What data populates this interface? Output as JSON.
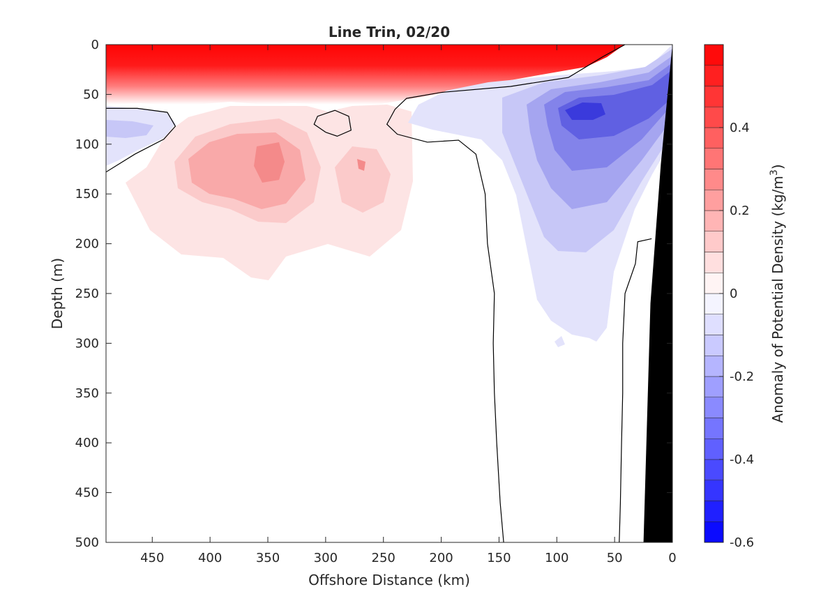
{
  "chart_data": {
    "type": "contourf",
    "title": "Line Trin, 02/20",
    "xlabel": "Offshore Distance (km)",
    "ylabel": "Depth (m)",
    "colorbar_label": "Anomaly of Potential Density (kg/m³)",
    "colorbar_label_text": "Anomaly of Potential Density (kg/m",
    "colorbar_label_sup": "3",
    "colorbar_label_close": ")",
    "xlim": [
      490,
      0
    ],
    "ylim": [
      500,
      0
    ],
    "x_ticks": [
      450,
      400,
      350,
      300,
      250,
      200,
      150,
      100,
      50,
      0
    ],
    "x_tick_labels": [
      "450",
      "400",
      "350",
      "300",
      "250",
      "200",
      "150",
      "100",
      "50",
      "0"
    ],
    "y_ticks": [
      0,
      50,
      100,
      150,
      200,
      250,
      300,
      350,
      400,
      450,
      500
    ],
    "y_tick_labels": [
      "0",
      "50",
      "100",
      "150",
      "200",
      "250",
      "300",
      "350",
      "400",
      "450",
      "500"
    ],
    "colorbar": {
      "range": [
        -0.6,
        0.6
      ],
      "levels": 24,
      "ticks": [
        0.4,
        0.2,
        0,
        -0.2,
        -0.4,
        -0.6
      ],
      "tick_labels": [
        "0.4",
        "0.2",
        "0",
        "-0.2",
        "-0.4",
        "-0.6"
      ],
      "colormap": "blue-white-red",
      "negative_color": "#0000ff",
      "positive_color": "#ff0000"
    },
    "features": [
      {
        "name": "surface warm/light layer",
        "x_range": [
          490,
          60
        ],
        "depth_range": [
          0,
          60
        ],
        "anomaly": 0.55
      },
      {
        "name": "offshore positive lobe",
        "center": [
          370,
          110
        ],
        "max_anomaly": 0.3,
        "extent_depth": 235
      },
      {
        "name": "mid positive lobe",
        "center": [
          265,
          120
        ],
        "max_anomaly": 0.2
      },
      {
        "name": "nearshore negative core",
        "center": [
          80,
          75
        ],
        "min_anomaly": -0.45,
        "extent_depth": 300
      },
      {
        "name": "offshore negative lens",
        "center": [
          470,
          85
        ],
        "min_anomaly": -0.12
      }
    ],
    "zero_contours": [
      {
        "label": "0",
        "points": [
          [
            490,
            128
          ],
          [
            465,
            110
          ],
          [
            440,
            95
          ],
          [
            430,
            82
          ],
          [
            437,
            68
          ],
          [
            463,
            64
          ],
          [
            490,
            64
          ]
        ]
      },
      {
        "label": "0",
        "points": [
          [
            300,
            88
          ],
          [
            310,
            80
          ],
          [
            307,
            72
          ],
          [
            292,
            66
          ],
          [
            280,
            72
          ],
          [
            278,
            86
          ],
          [
            290,
            92
          ],
          [
            300,
            88
          ]
        ]
      },
      {
        "label": "0",
        "points": [
          [
            41,
            0
          ],
          [
            60,
            12
          ],
          [
            90,
            33
          ],
          [
            140,
            42
          ],
          [
            200,
            48
          ],
          [
            230,
            54
          ],
          [
            240,
            65
          ],
          [
            247,
            80
          ],
          [
            238,
            90
          ],
          [
            212,
            98
          ],
          [
            185,
            96
          ],
          [
            170,
            110
          ],
          [
            162,
            150
          ],
          [
            160,
            200
          ],
          [
            154,
            250
          ],
          [
            155,
            300
          ],
          [
            154,
            350
          ],
          [
            152,
            400
          ],
          [
            149,
            460
          ],
          [
            146,
            500
          ]
        ]
      },
      {
        "label": "0",
        "points": [
          [
            46,
            500
          ],
          [
            45,
            460
          ],
          [
            44,
            400
          ],
          [
            43,
            350
          ],
          [
            43,
            300
          ],
          [
            41,
            250
          ],
          [
            32,
            220
          ],
          [
            30,
            198
          ],
          [
            18,
            195
          ]
        ]
      }
    ],
    "grid": false,
    "bathymetry": {
      "color": "#000000",
      "polygon": [
        [
          0,
          0
        ],
        [
          0,
          500
        ],
        [
          25,
          500
        ],
        [
          19,
          260
        ],
        [
          10,
          120
        ]
      ]
    }
  }
}
